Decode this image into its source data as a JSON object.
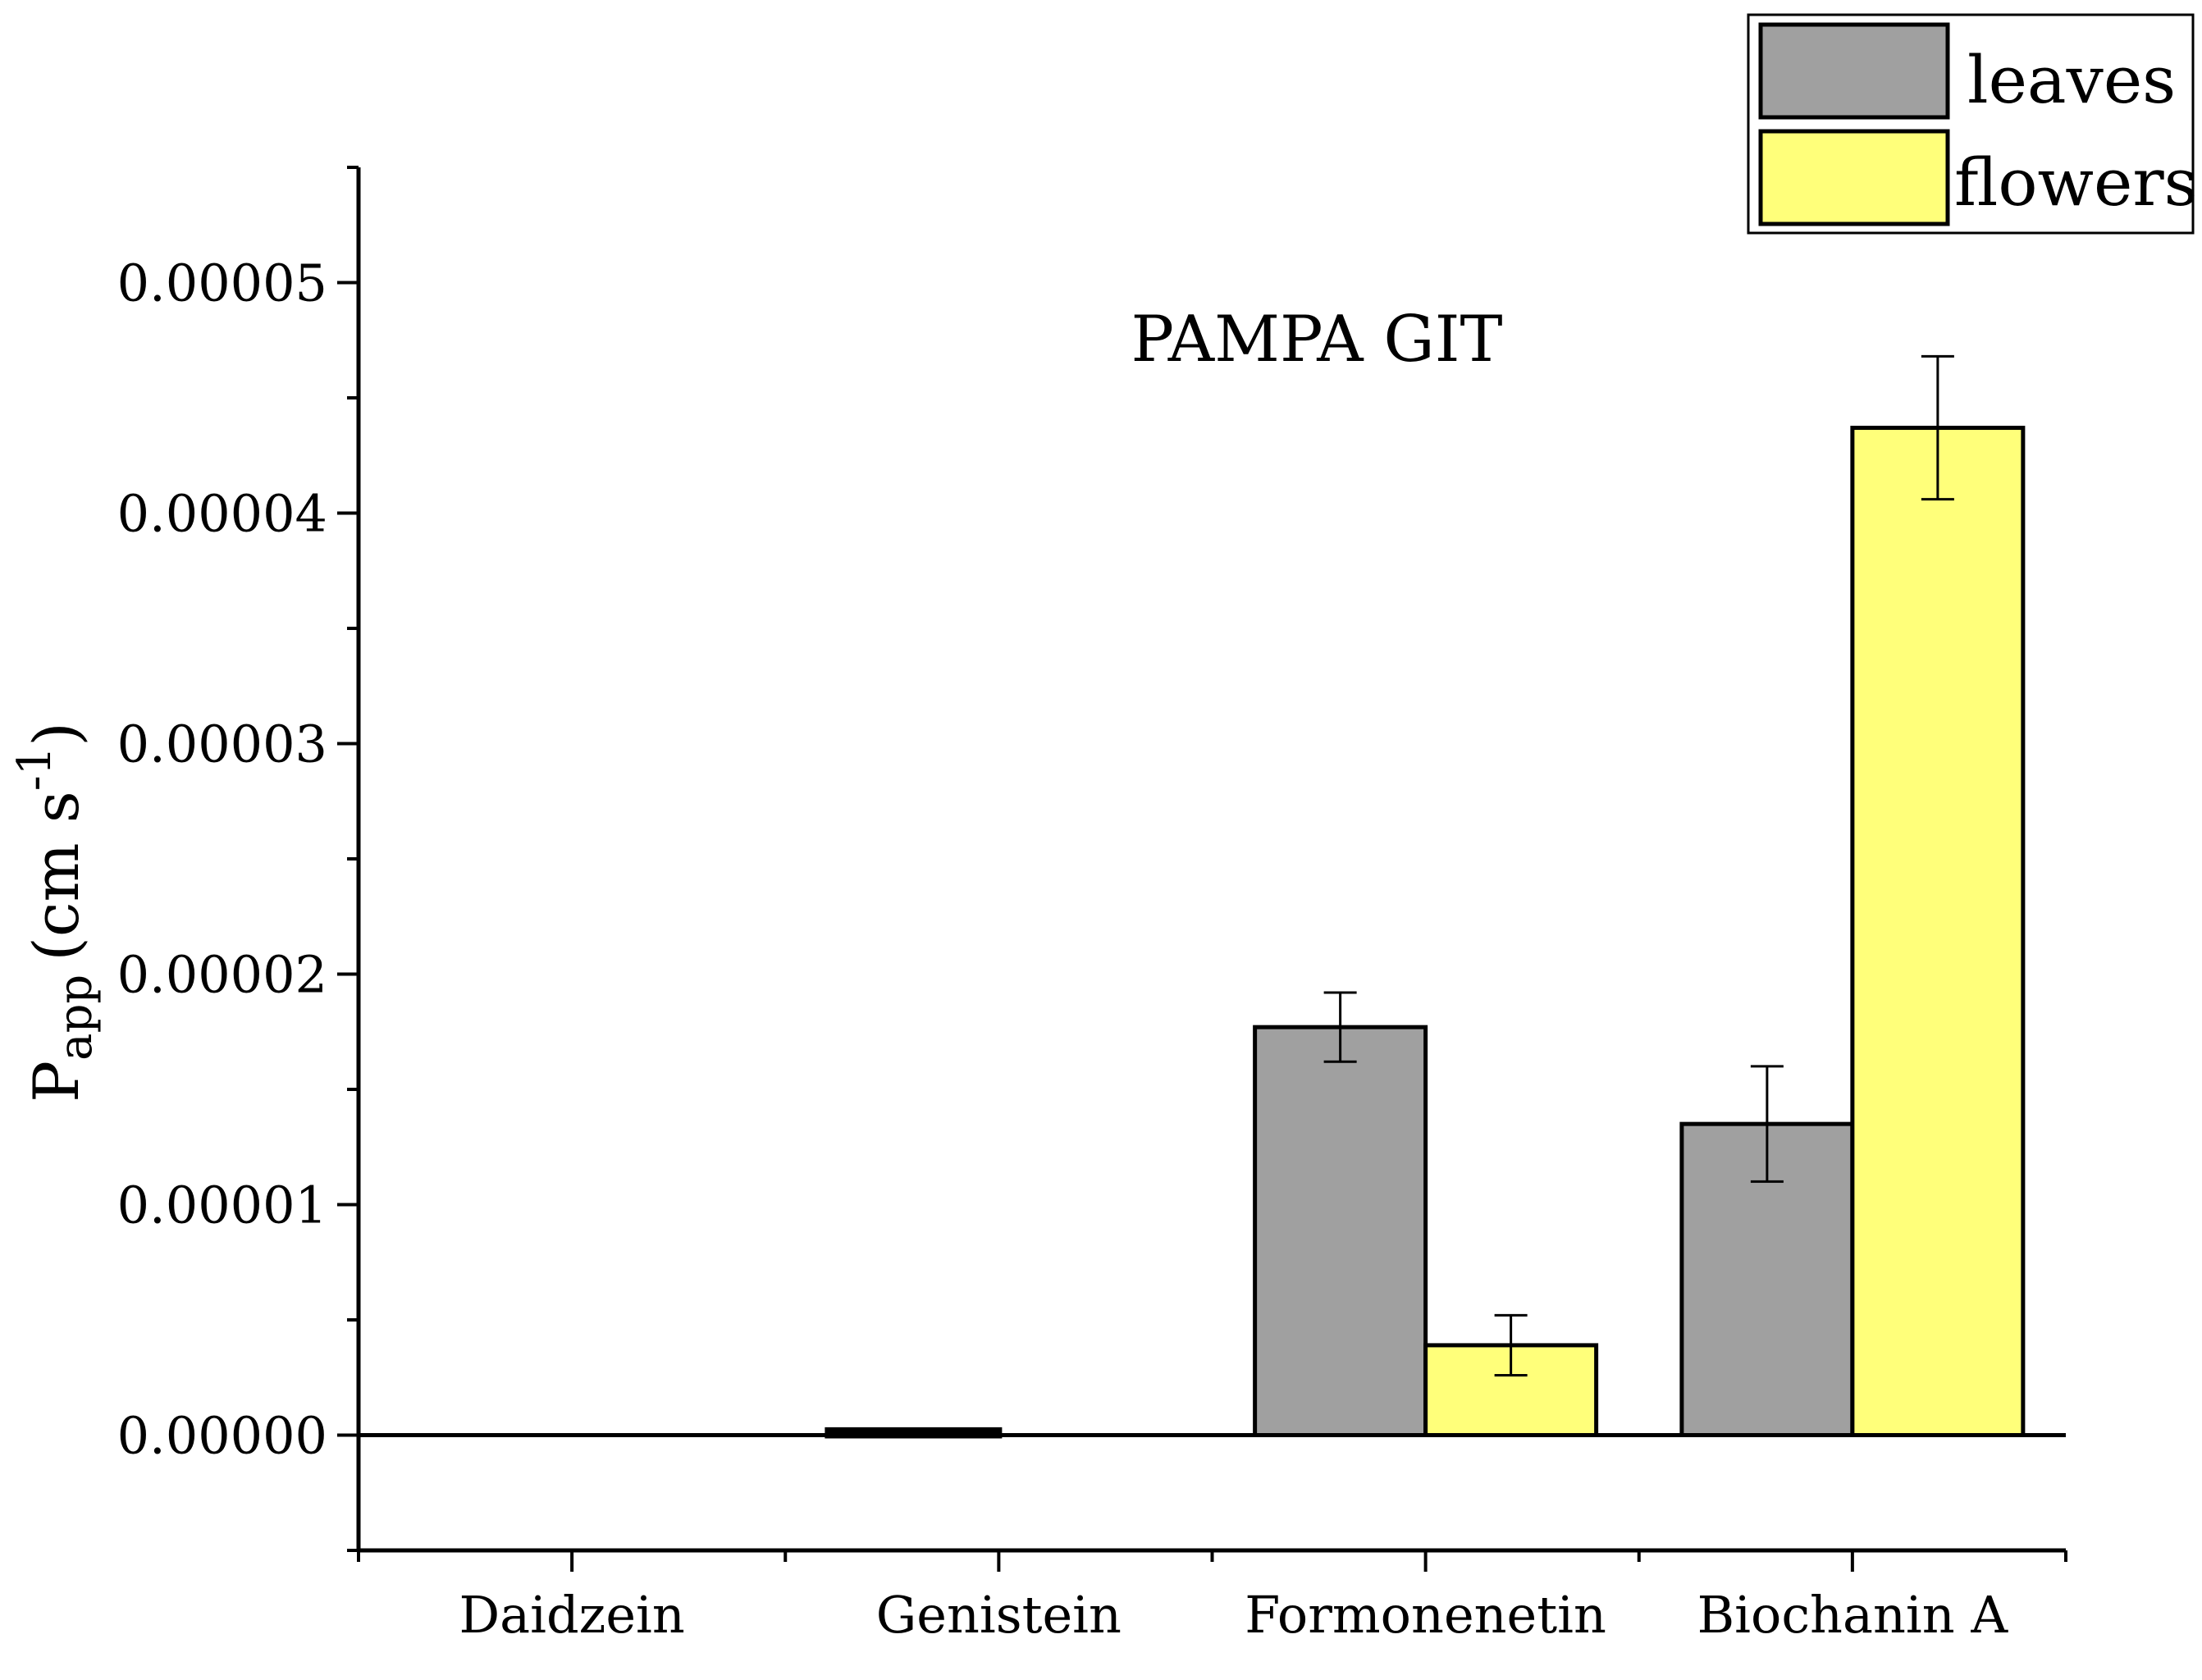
{
  "chart_data": {
    "type": "bar",
    "title": "PAMPA GIT",
    "xlabel": "",
    "ylabel": {
      "main": "P",
      "subscript": "app",
      "unit_open": "(cm s",
      "unit_superscript": "-1",
      "unit_close": ")"
    },
    "categories": [
      "Daidzein",
      "Genistein",
      "Formonenetin",
      "Biochanin A"
    ],
    "series": [
      {
        "name": "leaves",
        "color": "#a0a0a0",
        "values": [
          0.0,
          2e-07,
          1.77e-05,
          1.35e-05
        ],
        "errors": [
          null,
          null,
          1.5e-06,
          2.5e-06
        ]
      },
      {
        "name": "flowers",
        "color": "#ffff7a",
        "values": [
          0.0,
          0.0,
          3.9e-06,
          4.37e-05
        ],
        "errors": [
          null,
          null,
          1.3e-06,
          3.1e-06
        ]
      }
    ],
    "ylim": [
      -5e-06,
      5.5e-05
    ],
    "yticks": [
      "0.00000",
      "0.00001",
      "0.00002",
      "0.00003",
      "0.00004",
      "0.00005"
    ],
    "ytick_values": [
      0,
      1e-05,
      2e-05,
      3e-05,
      4e-05,
      5e-05
    ],
    "legend_position": "top-right",
    "grid": false
  }
}
